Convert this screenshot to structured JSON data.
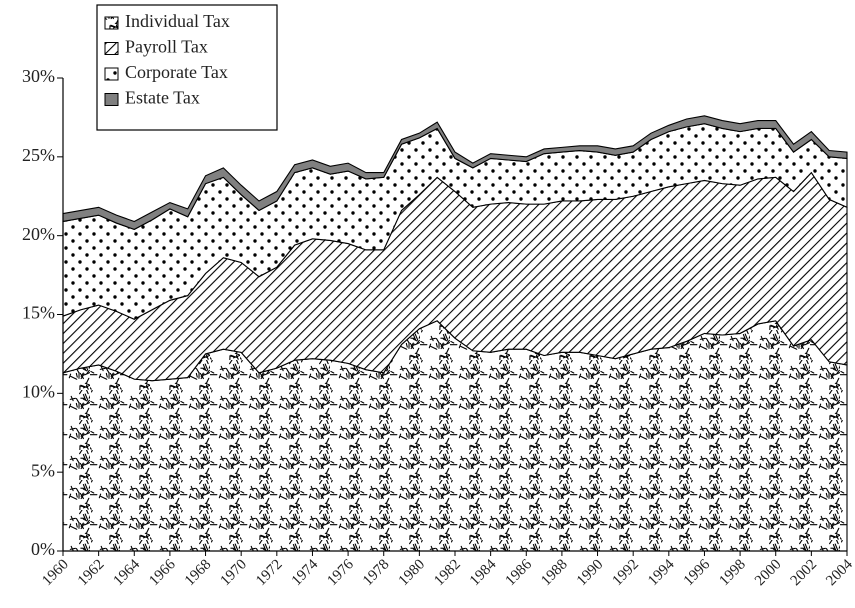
{
  "chart_data": {
    "type": "stacked-area",
    "x": [
      1960,
      1961,
      1962,
      1963,
      1964,
      1965,
      1966,
      1967,
      1968,
      1969,
      1970,
      1971,
      1972,
      1973,
      1974,
      1975,
      1976,
      1977,
      1978,
      1979,
      1980,
      1981,
      1982,
      1983,
      1984,
      1985,
      1986,
      1987,
      1988,
      1989,
      1990,
      1991,
      1992,
      1993,
      1994,
      1995,
      1996,
      1997,
      1998,
      1999,
      2000,
      2001,
      2002,
      2003,
      2004
    ],
    "xlim": [
      1960,
      2004
    ],
    "xticks": [
      1960,
      1962,
      1964,
      1966,
      1968,
      1970,
      1972,
      1974,
      1976,
      1978,
      1980,
      1982,
      1984,
      1986,
      1988,
      1990,
      1992,
      1994,
      1996,
      1998,
      2000,
      2002,
      2004
    ],
    "ylim": [
      0,
      30
    ],
    "yticks": [
      {
        "value": 0,
        "label": "0%"
      },
      {
        "value": 5,
        "label": "5%"
      },
      {
        "value": 10,
        "label": "10%"
      },
      {
        "value": 15,
        "label": "15%"
      },
      {
        "value": 20,
        "label": "20%"
      },
      {
        "value": 25,
        "label": "25%"
      },
      {
        "value": 30,
        "label": "30%"
      }
    ],
    "legend": "top-left",
    "series": [
      {
        "name": "Individual Tax",
        "color": "#000000",
        "pattern": "speckle",
        "values": [
          11.3,
          11.6,
          11.8,
          11.4,
          10.9,
          10.8,
          10.9,
          11.0,
          12.5,
          12.8,
          12.6,
          11.3,
          11.6,
          12.1,
          12.2,
          12.1,
          11.9,
          11.5,
          11.3,
          13.1,
          14.1,
          14.6,
          13.5,
          12.7,
          12.6,
          12.8,
          12.8,
          12.4,
          12.6,
          12.6,
          12.4,
          12.2,
          12.5,
          12.8,
          12.9,
          13.3,
          13.8,
          13.7,
          13.8,
          14.4,
          14.6,
          13.0,
          13.4,
          12.0,
          11.8
        ]
      },
      {
        "name": "Payroll Tax",
        "color": "#000000",
        "pattern": "hatch",
        "values": [
          3.6,
          3.7,
          3.8,
          3.8,
          3.8,
          4.5,
          5.0,
          5.2,
          5.1,
          5.8,
          5.7,
          6.1,
          6.4,
          7.3,
          7.6,
          7.6,
          7.6,
          7.6,
          7.8,
          8.5,
          8.5,
          9.1,
          9.3,
          9.1,
          9.4,
          9.3,
          9.2,
          9.6,
          9.6,
          9.6,
          9.9,
          10.1,
          10.0,
          10.0,
          10.2,
          10.0,
          9.7,
          9.6,
          9.4,
          9.2,
          9.1,
          9.8,
          10.6,
          10.3,
          10.0
        ]
      },
      {
        "name": "Corporate Tax",
        "color": "#000000",
        "pattern": "dots",
        "values": [
          6.0,
          5.8,
          5.7,
          5.6,
          5.7,
          5.7,
          5.8,
          5.0,
          5.7,
          5.1,
          4.3,
          4.2,
          4.2,
          4.6,
          4.5,
          4.2,
          4.6,
          4.5,
          4.6,
          4.2,
          3.6,
          3.1,
          2.1,
          2.5,
          2.9,
          2.7,
          2.7,
          3.2,
          3.1,
          3.2,
          3.0,
          2.8,
          2.8,
          3.3,
          3.5,
          3.6,
          3.6,
          3.5,
          3.4,
          3.2,
          3.1,
          2.5,
          2.1,
          2.7,
          3.1
        ]
      },
      {
        "name": "Estate Tax",
        "color": "#808080",
        "pattern": "solid",
        "values": [
          0.5,
          0.5,
          0.5,
          0.5,
          0.5,
          0.5,
          0.4,
          0.5,
          0.5,
          0.6,
          0.6,
          0.6,
          0.6,
          0.5,
          0.5,
          0.5,
          0.5,
          0.4,
          0.3,
          0.3,
          0.3,
          0.4,
          0.4,
          0.3,
          0.3,
          0.3,
          0.3,
          0.3,
          0.3,
          0.3,
          0.4,
          0.4,
          0.4,
          0.4,
          0.4,
          0.5,
          0.5,
          0.5,
          0.5,
          0.5,
          0.5,
          0.5,
          0.5,
          0.4,
          0.4
        ]
      }
    ]
  }
}
